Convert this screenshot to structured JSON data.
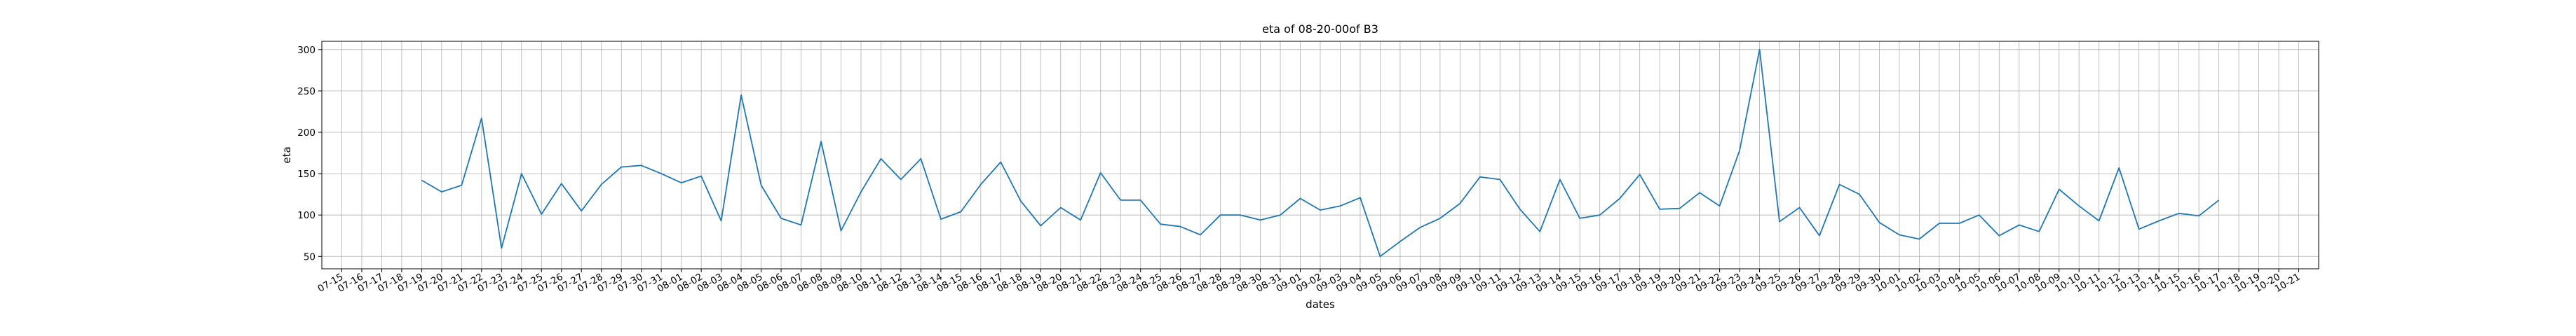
{
  "chart_data": {
    "type": "line",
    "title": "eta of 08-20-00of B3",
    "xlabel": "dates",
    "ylabel": "eta",
    "grid": true,
    "line_color": "#1f77b4",
    "ylim": [
      35,
      310
    ],
    "yticks": [
      50,
      100,
      150,
      200,
      250,
      300
    ],
    "xticks": [
      "07-15",
      "07-16",
      "07-17",
      "07-18",
      "07-19",
      "07-20",
      "07-21",
      "07-22",
      "07-23",
      "07-24",
      "07-25",
      "07-26",
      "07-27",
      "07-28",
      "07-29",
      "07-30",
      "07-31",
      "08-01",
      "08-02",
      "08-03",
      "08-04",
      "08-05",
      "08-06",
      "08-07",
      "08-08",
      "08-09",
      "08-10",
      "08-11",
      "08-12",
      "08-13",
      "08-14",
      "08-15",
      "08-16",
      "08-17",
      "08-18",
      "08-19",
      "08-20",
      "08-21",
      "08-22",
      "08-23",
      "08-24",
      "08-25",
      "08-26",
      "08-27",
      "08-28",
      "08-29",
      "08-30",
      "08-31",
      "09-01",
      "09-02",
      "09-03",
      "09-04",
      "09-05",
      "09-06",
      "09-07",
      "09-08",
      "09-09",
      "09-10",
      "09-11",
      "09-12",
      "09-13",
      "09-14",
      "09-15",
      "09-16",
      "09-17",
      "09-18",
      "09-19",
      "09-20",
      "09-21",
      "09-22",
      "09-23",
      "09-24",
      "09-25",
      "09-26",
      "09-27",
      "09-28",
      "09-29",
      "09-30",
      "10-01",
      "10-02",
      "10-03",
      "10-04",
      "10-05",
      "10-06",
      "10-07",
      "10-08",
      "10-09",
      "10-10",
      "10-11",
      "10-12",
      "10-13",
      "10-14",
      "10-15",
      "10-16",
      "10-17",
      "10-18",
      "10-19",
      "10-20",
      "10-21"
    ],
    "series": [
      {
        "x": [
          "07-19",
          "07-20",
          "07-21",
          "07-22",
          "07-23",
          "07-24",
          "07-25",
          "07-26",
          "07-27",
          "07-28",
          "07-29",
          "07-30",
          "07-31",
          "08-01",
          "08-02",
          "08-03",
          "08-04",
          "08-05",
          "08-06",
          "08-07",
          "08-08",
          "08-09",
          "08-10",
          "08-11",
          "08-12",
          "08-13",
          "08-14",
          "08-15",
          "08-16",
          "08-17",
          "08-18",
          "08-19",
          "08-20",
          "08-21",
          "08-22",
          "08-23",
          "08-24",
          "08-25",
          "08-26",
          "08-27",
          "08-28",
          "08-29",
          "08-30",
          "08-31",
          "09-01",
          "09-02",
          "09-03",
          "09-04",
          "09-05",
          "09-06",
          "09-07",
          "09-08",
          "09-09",
          "09-10",
          "09-11",
          "09-12",
          "09-13",
          "09-14",
          "09-15",
          "09-16",
          "09-17",
          "09-18",
          "09-19",
          "09-20",
          "09-21",
          "09-22",
          "09-23",
          "09-24",
          "09-25",
          "09-26",
          "09-27",
          "09-28",
          "09-29",
          "09-30",
          "10-01",
          "10-02",
          "10-03",
          "10-04",
          "10-05",
          "10-06",
          "10-07",
          "10-08",
          "10-09",
          "10-10",
          "10-11",
          "10-12",
          "10-13",
          "10-14",
          "10-15",
          "10-16",
          "10-17"
        ],
        "values": [
          142,
          128,
          136,
          217,
          60,
          150,
          101,
          138,
          105,
          137,
          158,
          160,
          150,
          139,
          147,
          93,
          245,
          136,
          96,
          88,
          189,
          81,
          128,
          168,
          143,
          168,
          95,
          104,
          137,
          164,
          117,
          87,
          109,
          94,
          151,
          118,
          118,
          89,
          86,
          76,
          100,
          100,
          94,
          100,
          120,
          106,
          111,
          121,
          50,
          68,
          85,
          96,
          114,
          146,
          143,
          107,
          80,
          143,
          96,
          100,
          120,
          149,
          107,
          108,
          127,
          111,
          178,
          300,
          92,
          109,
          75,
          137,
          125,
          91,
          76,
          71,
          90,
          90,
          100,
          75,
          88,
          80,
          131,
          111,
          93,
          157,
          83,
          93,
          102,
          99,
          118
        ]
      }
    ]
  }
}
